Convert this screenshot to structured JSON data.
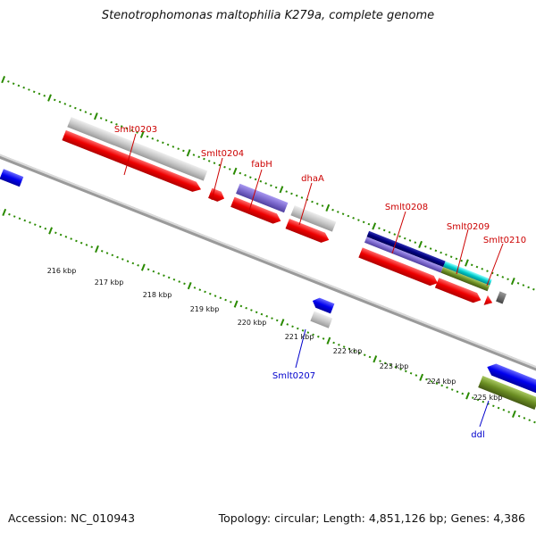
{
  "title": "Stenotrophomonas maltophilia K279a, complete genome",
  "footer": {
    "accession": "Accession: NC_010943",
    "summary": "Topology: circular; Length: 4,851,126 bp; Genes: 4,386"
  },
  "scale_labels": [
    "216 kbp",
    "217 kbp",
    "218 kbp",
    "219 kbp",
    "220 kbp",
    "221 kbp",
    "222 kbp",
    "223 kbp",
    "224 kbp",
    "225 kbp"
  ],
  "gene_labels": {
    "top": [
      "Smlt0203",
      "Smlt0204",
      "fabH",
      "dhaA",
      "Smlt0208",
      "Smlt0209",
      "Smlt0210"
    ],
    "bottom": [
      "Smlt0207",
      "ddl"
    ]
  },
  "colors": {
    "label_top": "#cc0000",
    "label_bottom": "#0000cc",
    "cds": "#ee0000",
    "gene_grey": "#c8c8c8",
    "gene_purple": "#7b68cc",
    "gene_navy": "#000080",
    "gene_cyan": "#00cccc",
    "gene_olive": "#6b8e23",
    "gene_blue": "#0000ee",
    "tick_green": "#2a8a00"
  }
}
